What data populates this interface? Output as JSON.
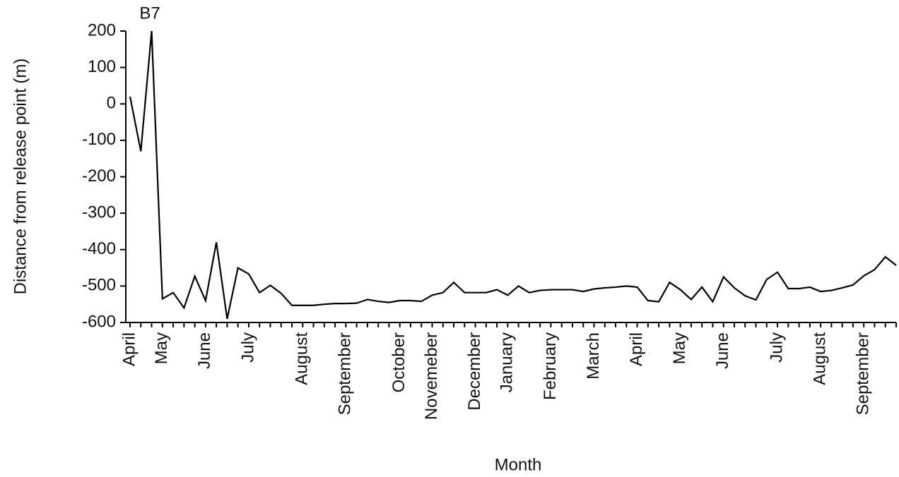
{
  "chart_data": {
    "type": "line",
    "annotation": "B7",
    "y_label": "Distance from release point (m)",
    "x_label": "Month",
    "color": "#000000",
    "categories": [
      "April",
      null,
      null,
      "May",
      null,
      null,
      null,
      "June",
      null,
      null,
      null,
      "July",
      null,
      null,
      null,
      null,
      "August",
      null,
      null,
      null,
      "September",
      null,
      null,
      null,
      null,
      "October",
      null,
      null,
      "Novemeber",
      null,
      null,
      null,
      "December",
      null,
      null,
      "January",
      null,
      null,
      null,
      "February",
      null,
      null,
      null,
      "March",
      null,
      null,
      null,
      "April",
      null,
      null,
      null,
      "May",
      null,
      null,
      null,
      "June",
      null,
      null,
      null,
      null,
      "July",
      null,
      null,
      null,
      "August",
      null,
      null,
      null,
      "September",
      null,
      null,
      null
    ],
    "values": [
      20,
      -130,
      200,
      -535,
      -518,
      -560,
      -473,
      -540,
      -380,
      -590,
      -450,
      -467,
      -518,
      -498,
      -520,
      -553,
      -553,
      -553,
      -550,
      -548,
      -548,
      -547,
      -537,
      -542,
      -545,
      -540,
      -540,
      -542,
      -525,
      -518,
      -490,
      -518,
      -518,
      -518,
      -510,
      -525,
      -500,
      -518,
      -512,
      -510,
      -510,
      -510,
      -515,
      -508,
      -505,
      -503,
      -500,
      -503,
      -540,
      -543,
      -490,
      -510,
      -537,
      -503,
      -543,
      -475,
      -505,
      -527,
      -538,
      -482,
      -462,
      -507,
      -507,
      -503,
      -515,
      -512,
      -505,
      -497,
      -472,
      -455,
      -420,
      -443
    ],
    "ylim": [
      -600,
      200
    ],
    "yticks": [
      -600,
      -500,
      -400,
      -300,
      -200,
      -100,
      0,
      100,
      200
    ],
    "grid": false
  }
}
